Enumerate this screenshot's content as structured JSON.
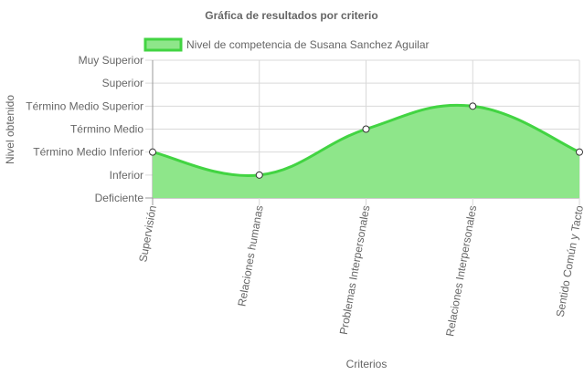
{
  "chart_data": {
    "type": "area",
    "title": "Gráfica de resultados por criterio",
    "xlabel": "Criterios",
    "ylabel": "Nivel obtenido",
    "categories": [
      "Supervisión",
      "Relaciones humanas",
      "Problemas Interpersonales",
      "Relaciones Interpersonales",
      "Sentido Común y Tacto"
    ],
    "y_levels": [
      "Deficiente",
      "Inferior",
      "Término Medio Inferior",
      "Término Medio",
      "Término Medio Superior",
      "Superior",
      "Muy Superior"
    ],
    "ylim": [
      0,
      6
    ],
    "series": [
      {
        "name": "Nivel de competencia de Susana Sanchez Aguilar",
        "values": [
          2,
          1,
          3,
          4,
          2
        ]
      }
    ],
    "legend": "top",
    "grid": true,
    "colors": {
      "fill": "#8ee68a",
      "line": "#42d442",
      "grid": "#d9d9d9",
      "point_fill": "#ffffff",
      "point_stroke": "#333333"
    }
  }
}
